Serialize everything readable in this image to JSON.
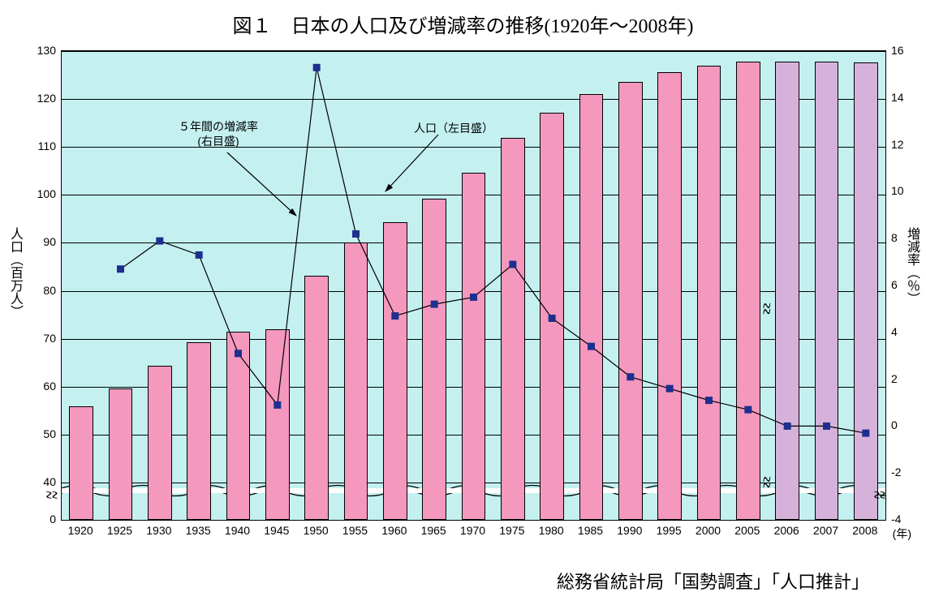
{
  "title": "図１　日本の人口及び増減率の推移(1920年～2008年)",
  "source": "総務省統計局「国勢調査」「人口推計」",
  "yaxis_left_title": "人口（百万人）",
  "yaxis_right_title": "増減率（％）",
  "xaxis_title": "(年)",
  "annotation_rate": "５年間の増減率\n(右目盛)",
  "annotation_pop": "人口（左目盛）",
  "chart": {
    "type": "bar+line",
    "background_color": "#c4f0f0",
    "grid_color": "#000000",
    "bar_border_color": "#000000",
    "bar_color_main": "#f598bd",
    "bar_color_alt": "#d6b2db",
    "line_color": "#000000",
    "marker_color": "#1e2f8f",
    "marker_size": 9,
    "line_width": 1.2,
    "bar_width_ratio": 0.62,
    "title_fontsize": 24,
    "label_fontsize": 14,
    "axis_title_fontsize": 16,
    "font_family": "MS PMincho",
    "y_left": {
      "ticks": [
        0,
        40,
        50,
        60,
        70,
        80,
        90,
        100,
        110,
        120,
        130
      ],
      "break_after": 0,
      "break_span": 40
    },
    "y_right": {
      "min": -4,
      "max": 16,
      "step": 2
    },
    "years": [
      1920,
      1925,
      1930,
      1935,
      1940,
      1945,
      1950,
      1955,
      1960,
      1965,
      1970,
      1975,
      1980,
      1985,
      1990,
      1995,
      2000,
      2005,
      2006,
      2007,
      2008
    ],
    "population": [
      55.9,
      59.7,
      64.4,
      69.2,
      71.4,
      72.0,
      83.2,
      90.1,
      94.3,
      99.2,
      104.7,
      111.9,
      117.1,
      121.0,
      123.6,
      125.6,
      126.9,
      127.8,
      127.8,
      127.8,
      127.7
    ],
    "alt_color_from_index": 18,
    "rate": [
      null,
      6.7,
      7.9,
      7.3,
      3.1,
      0.9,
      15.3,
      8.2,
      4.7,
      5.2,
      5.5,
      6.9,
      4.6,
      3.4,
      2.1,
      1.6,
      1.1,
      0.7,
      0.0,
      0.0,
      -0.3
    ],
    "vbreak_after_index": 17
  }
}
